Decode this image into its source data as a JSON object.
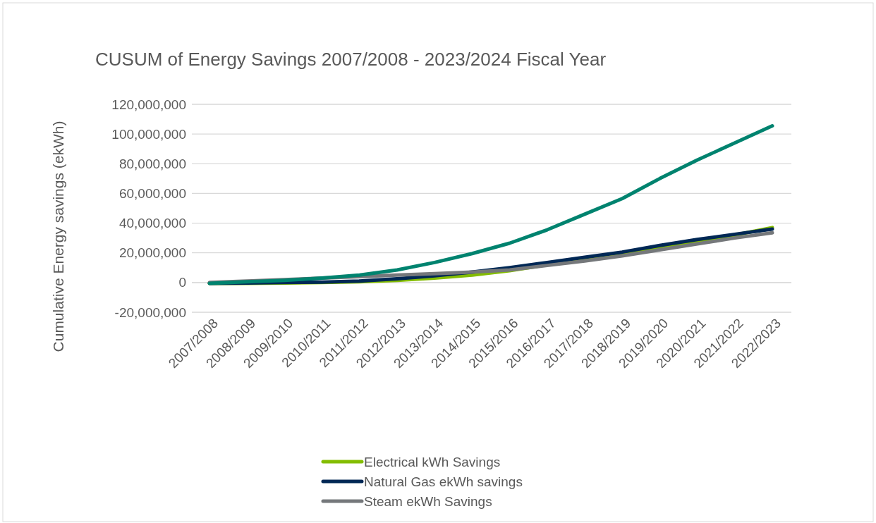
{
  "chart_data": {
    "type": "line",
    "title": "CUSUM of Energy Savings 2007/2008 - 2023/2024 Fiscal Year",
    "ylabel": "Cumulative Energy savings (ekWh)",
    "categories": [
      "2007/2008",
      "2008/2009",
      "2009/2010",
      "2010/2011",
      "2011/2012",
      "2012/2013",
      "2013/2014",
      "2014/2015",
      "2015/2016",
      "2016/2017",
      "2017/2018",
      "2018/2019",
      "2019/2020",
      "2020/2021",
      "2021/2022",
      "2022/2023"
    ],
    "series": [
      {
        "name": "Electrical kWh Savings",
        "color": "#84bd00",
        "values": [
          -500000,
          -500000,
          -300000,
          0,
          500000,
          1500000,
          3000000,
          5000000,
          8000000,
          12000000,
          15500000,
          19000000,
          23000000,
          27500000,
          32000000,
          37000000
        ]
      },
      {
        "name": "Natural Gas ekWh savings",
        "color": "#002855",
        "values": [
          -500000,
          -300000,
          0,
          300000,
          1000000,
          2500000,
          4500000,
          7000000,
          10000000,
          13500000,
          17000000,
          20500000,
          25000000,
          29000000,
          32500000,
          36000000
        ]
      },
      {
        "name": "Steam ekWh Savings",
        "color": "#75787b",
        "values": [
          0,
          1000000,
          2000000,
          3000000,
          4000000,
          5000000,
          6000000,
          7000000,
          8500000,
          11500000,
          14500000,
          18000000,
          22000000,
          26000000,
          30000000,
          33500000
        ]
      },
      {
        "color": "#00836f",
        "values": [
          -500000,
          500000,
          1500000,
          3000000,
          5000000,
          8500000,
          13500000,
          19500000,
          26500000,
          35500000,
          46000000,
          56500000,
          70000000,
          82500000,
          94000000,
          105500000
        ]
      }
    ],
    "ylim": [
      -20000000,
      120000000
    ],
    "yticks": [
      {
        "value": -20000000,
        "label": "-20,000,000"
      },
      0,
      {
        "value": 20000000,
        "label": "20,000,000"
      },
      {
        "value": 40000000,
        "label": "40,000,000"
      },
      {
        "value": 60000000,
        "label": "60,000,000"
      },
      {
        "value": 80000000,
        "label": "80,000,000"
      },
      {
        "value": 100000000,
        "label": "100,000,000"
      },
      {
        "value": 120000000,
        "label": "120,000,000"
      }
    ],
    "grid": "y",
    "legend": "bottom",
    "marker": "none",
    "line_style": "solid"
  }
}
